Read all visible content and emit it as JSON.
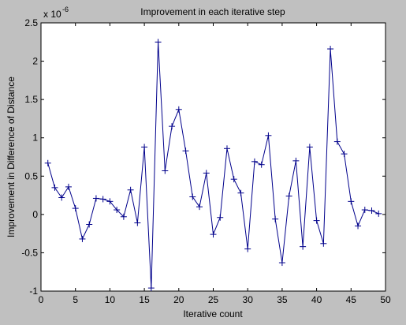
{
  "chart_data": {
    "type": "line",
    "title": "Improvement in each iterative step",
    "xlabel": "Iterative count",
    "ylabel": "Improvement in Difference of Distance",
    "y_scale_label": "x 10",
    "y_scale_exponent": "-6",
    "xlim": [
      0,
      50
    ],
    "ylim": [
      -1,
      2.5
    ],
    "x_ticks": [
      {
        "value": 0,
        "label": "0"
      },
      {
        "value": 5,
        "label": "5"
      },
      {
        "value": 10,
        "label": "10"
      },
      {
        "value": 15,
        "label": "15"
      },
      {
        "value": 20,
        "label": "20"
      },
      {
        "value": 25,
        "label": "25"
      },
      {
        "value": 30,
        "label": "30"
      },
      {
        "value": 35,
        "label": "35"
      },
      {
        "value": 40,
        "label": "40"
      },
      {
        "value": 45,
        "label": "45"
      },
      {
        "value": 50,
        "label": "50"
      }
    ],
    "y_ticks": [
      {
        "value": -1,
        "label": "-1"
      },
      {
        "value": -0.5,
        "label": "-0.5"
      },
      {
        "value": 0,
        "label": "0"
      },
      {
        "value": 0.5,
        "label": "0.5"
      },
      {
        "value": 1,
        "label": "1"
      },
      {
        "value": 1.5,
        "label": "1.5"
      },
      {
        "value": 2,
        "label": "2"
      },
      {
        "value": 2.5,
        "label": "2.5"
      }
    ],
    "grid": false,
    "marker": "+",
    "line_color": "#00008b",
    "series": [
      {
        "x": [
          1,
          2,
          3,
          4,
          5,
          6,
          7,
          8,
          9,
          10,
          11,
          12,
          13,
          14,
          15,
          16,
          17,
          18,
          19,
          20,
          21,
          22,
          23,
          24,
          25,
          26,
          27,
          28,
          29,
          30,
          31,
          32,
          33,
          34,
          35,
          36,
          37,
          38,
          39,
          40,
          41,
          42,
          43,
          44,
          45,
          46,
          47,
          48,
          49
        ],
        "values": [
          0.67,
          0.35,
          0.22,
          0.36,
          0.08,
          -0.32,
          -0.13,
          0.21,
          0.2,
          0.17,
          0.06,
          -0.03,
          0.32,
          -0.11,
          0.88,
          -0.96,
          2.25,
          0.57,
          1.15,
          1.37,
          0.83,
          0.23,
          0.1,
          0.54,
          -0.26,
          -0.04,
          0.86,
          0.46,
          0.28,
          -0.45,
          0.69,
          0.65,
          1.03,
          -0.06,
          -0.63,
          0.24,
          0.7,
          -0.42,
          0.88,
          -0.08,
          -0.38,
          2.16,
          0.95,
          0.79,
          0.17,
          -0.15,
          0.06,
          0.05,
          0.01
        ]
      }
    ]
  }
}
